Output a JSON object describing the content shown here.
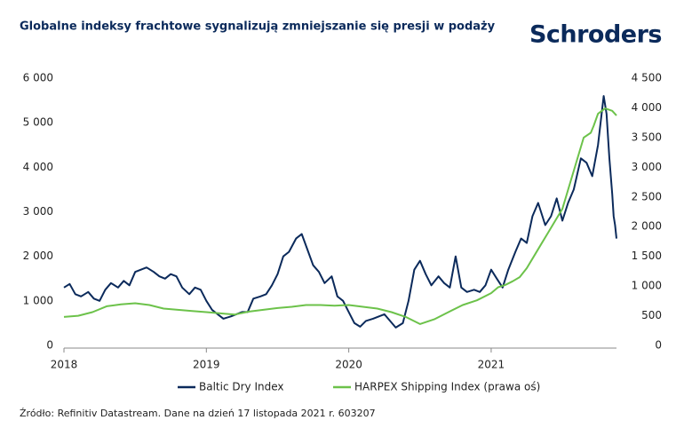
{
  "chart_data": {
    "type": "line",
    "title": "Globalne indeksy frachtowe sygnalizują zmniejszanie się presji w podaży",
    "brand": "Schroders",
    "source": "Źródło: Refinitiv Datastream. Dane na dzień 17 listopada 2021 r. 603207",
    "xlim": [
      2018,
      2021.88
    ],
    "xticks": [
      2018,
      2019,
      2020,
      2021
    ],
    "ylim": [
      0,
      6000
    ],
    "yticks": [
      0,
      {
        "value": 1000,
        "label": "1 000"
      },
      {
        "value": 2000,
        "label": "2 000"
      },
      {
        "value": 3000,
        "label": "3 000"
      },
      {
        "value": 4000,
        "label": "4 000"
      },
      {
        "value": 5000,
        "label": "5 000"
      },
      {
        "value": 6000,
        "label": "6 000"
      }
    ],
    "y2lim": [
      0,
      4500
    ],
    "y2ticks": [
      0,
      500,
      {
        "value": 1000,
        "label": "1 000"
      },
      {
        "value": 1500,
        "label": "1 500"
      },
      {
        "value": 2000,
        "label": "2 000"
      },
      {
        "value": 2500,
        "label": "2 500"
      },
      {
        "value": 3000,
        "label": "3 000"
      },
      {
        "value": 3500,
        "label": "3 500"
      },
      {
        "value": 4000,
        "label": "4 000"
      },
      {
        "value": 4500,
        "label": "4 500"
      }
    ],
    "series": [
      {
        "name": "Baltic Dry Index",
        "color": "#0b2a5b",
        "x": [
          2018.0,
          2018.04,
          2018.08,
          2018.12,
          2018.17,
          2018.21,
          2018.25,
          2018.29,
          2018.33,
          2018.38,
          2018.42,
          2018.46,
          2018.5,
          2018.54,
          2018.58,
          2018.63,
          2018.67,
          2018.71,
          2018.75,
          2018.79,
          2018.83,
          2018.88,
          2018.92,
          2018.96,
          2019.0,
          2019.04,
          2019.08,
          2019.12,
          2019.17,
          2019.21,
          2019.25,
          2019.29,
          2019.33,
          2019.38,
          2019.42,
          2019.46,
          2019.5,
          2019.54,
          2019.58,
          2019.63,
          2019.67,
          2019.71,
          2019.75,
          2019.79,
          2019.83,
          2019.88,
          2019.92,
          2019.96,
          2020.0,
          2020.04,
          2020.08,
          2020.12,
          2020.17,
          2020.21,
          2020.25,
          2020.29,
          2020.33,
          2020.38,
          2020.42,
          2020.46,
          2020.5,
          2020.54,
          2020.58,
          2020.63,
          2020.67,
          2020.71,
          2020.75,
          2020.79,
          2020.83,
          2020.88,
          2020.92,
          2020.96,
          2021.0,
          2021.04,
          2021.08,
          2021.12,
          2021.17,
          2021.21,
          2021.25,
          2021.29,
          2021.33,
          2021.38,
          2021.42,
          2021.46,
          2021.5,
          2021.54,
          2021.58,
          2021.63,
          2021.67,
          2021.71,
          2021.75,
          2021.79,
          2021.81,
          2021.83,
          2021.85,
          2021.86,
          2021.87,
          2021.88
        ],
        "values": [
          1300,
          1380,
          1150,
          1100,
          1200,
          1050,
          1000,
          1250,
          1400,
          1300,
          1450,
          1350,
          1650,
          1700,
          1750,
          1650,
          1550,
          1500,
          1600,
          1550,
          1300,
          1150,
          1300,
          1250,
          1000,
          800,
          700,
          600,
          650,
          700,
          750,
          750,
          1050,
          1100,
          1150,
          1350,
          1600,
          2000,
          2100,
          2400,
          2500,
          2150,
          1800,
          1650,
          1400,
          1550,
          1100,
          1000,
          750,
          500,
          420,
          550,
          600,
          650,
          700,
          550,
          400,
          500,
          1000,
          1700,
          1900,
          1600,
          1350,
          1550,
          1400,
          1300,
          2000,
          1300,
          1200,
          1250,
          1200,
          1350,
          1700,
          1500,
          1300,
          1700,
          2100,
          2400,
          2300,
          2900,
          3200,
          2700,
          2900,
          3300,
          2800,
          3200,
          3500,
          4200,
          4100,
          3800,
          4500,
          5600,
          5200,
          4200,
          3400,
          2900,
          2700,
          2400
        ]
      },
      {
        "name": "HARPEX Shipping Index (prawa oś)",
        "color": "#6cc24a",
        "axis": "y2",
        "x": [
          2018.0,
          2018.1,
          2018.2,
          2018.3,
          2018.4,
          2018.5,
          2018.6,
          2018.7,
          2018.8,
          2018.9,
          2019.0,
          2019.1,
          2019.2,
          2019.3,
          2019.4,
          2019.5,
          2019.6,
          2019.7,
          2019.8,
          2019.9,
          2020.0,
          2020.1,
          2020.2,
          2020.3,
          2020.4,
          2020.5,
          2020.6,
          2020.7,
          2020.8,
          2020.9,
          2021.0,
          2021.05,
          2021.1,
          2021.15,
          2021.2,
          2021.25,
          2021.3,
          2021.35,
          2021.4,
          2021.45,
          2021.5,
          2021.55,
          2021.6,
          2021.65,
          2021.7,
          2021.72,
          2021.75,
          2021.8,
          2021.85,
          2021.88
        ],
        "values": [
          480,
          500,
          560,
          660,
          690,
          710,
          680,
          620,
          600,
          580,
          560,
          540,
          520,
          570,
          600,
          630,
          650,
          680,
          680,
          670,
          680,
          650,
          620,
          560,
          480,
          360,
          440,
          560,
          680,
          760,
          880,
          980,
          1020,
          1080,
          1150,
          1300,
          1500,
          1700,
          1900,
          2100,
          2300,
          2700,
          3100,
          3500,
          3580,
          3700,
          3900,
          3990,
          3950,
          3870
        ]
      }
    ]
  }
}
